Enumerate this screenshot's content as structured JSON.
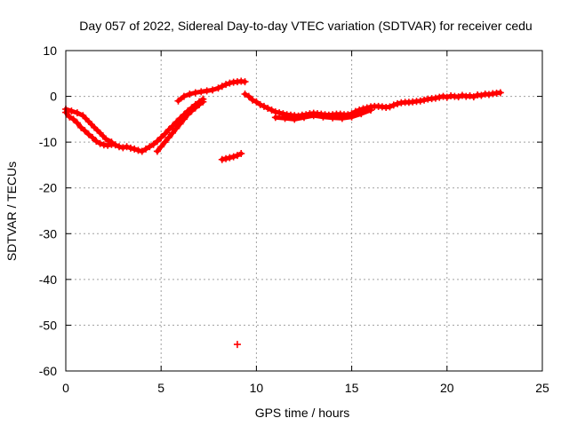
{
  "chart_data": {
    "type": "scatter",
    "title": "Day 057 of 2022, Sidereal Day-to-day VTEC variation (SDTVAR) for receiver cedu",
    "xlabel": "GPS time / hours",
    "ylabel": "SDTVAR / TECUs",
    "xlim": [
      0,
      25
    ],
    "ylim": [
      -60,
      10
    ],
    "xticks": [
      0,
      5,
      10,
      15,
      20,
      25
    ],
    "yticks": [
      10,
      0,
      -10,
      -20,
      -30,
      -40,
      -50,
      -60
    ],
    "grid": true,
    "series": [
      {
        "name": "SDTVAR",
        "color": "#ff0000",
        "segments": [
          {
            "x": [
              0.0,
              0.2,
              0.4,
              0.6,
              0.8,
              1.0,
              1.2,
              1.4,
              1.6,
              1.8,
              2.0,
              2.2,
              2.4,
              2.6,
              2.8,
              3.0,
              3.2,
              3.4,
              3.6,
              3.8,
              4.0,
              4.2,
              4.4,
              4.6,
              4.8,
              5.0,
              5.2,
              5.4,
              5.6,
              5.8,
              6.0,
              6.2,
              6.4,
              6.6,
              6.8,
              7.0,
              7.2
            ],
            "y": [
              -3.5,
              -4.5,
              -5.0,
              -5.8,
              -6.8,
              -7.5,
              -8.3,
              -9.0,
              -9.8,
              -10.3,
              -10.6,
              -10.7,
              -10.5,
              -10.6,
              -11.0,
              -11.2,
              -11.0,
              -11.3,
              -11.5,
              -11.8,
              -12.0,
              -11.5,
              -11.0,
              -10.5,
              -9.8,
              -9.0,
              -8.2,
              -7.3,
              -6.5,
              -5.6,
              -4.8,
              -4.0,
              -3.2,
              -2.5,
              -1.8,
              -1.2,
              -0.6
            ]
          },
          {
            "x": [
              0.0,
              0.3,
              0.6,
              0.9,
              1.2,
              1.5,
              1.8,
              2.1,
              2.4
            ],
            "y": [
              -2.8,
              -3.2,
              -3.6,
              -4.2,
              -5.5,
              -6.8,
              -8.0,
              -9.3,
              -10.0
            ]
          },
          {
            "x": [
              4.8,
              5.0,
              5.2,
              5.4,
              5.6,
              5.8,
              6.0,
              6.2,
              6.4,
              6.6,
              6.8,
              7.0,
              7.2
            ],
            "y": [
              -12.0,
              -11.0,
              -10.0,
              -9.0,
              -8.0,
              -7.0,
              -6.0,
              -5.0,
              -4.0,
              -3.2,
              -2.5,
              -1.8,
              -1.2
            ]
          },
          {
            "x": [
              5.9,
              6.2,
              6.5,
              6.8,
              7.1,
              7.4,
              7.7,
              8.0,
              8.2,
              8.4,
              8.6,
              8.8,
              9.0,
              9.2,
              9.4
            ],
            "y": [
              -1.0,
              0.0,
              0.5,
              0.8,
              1.0,
              1.2,
              1.4,
              1.8,
              2.2,
              2.6,
              2.9,
              3.1,
              3.2,
              3.3,
              3.2
            ]
          },
          {
            "x": [
              8.2,
              8.4,
              8.6,
              8.8,
              9.0,
              9.2
            ],
            "y": [
              -13.8,
              -13.6,
              -13.4,
              -13.2,
              -12.9,
              -12.5
            ]
          },
          {
            "x": [
              9.0
            ],
            "y": [
              -54.2
            ]
          },
          {
            "x": [
              9.4,
              9.6,
              9.8,
              10.0,
              10.2,
              10.4,
              10.6,
              10.8,
              11.0,
              11.2,
              11.4,
              11.6,
              11.8,
              12.0,
              12.2,
              12.4,
              12.6,
              12.8,
              13.0,
              13.2,
              13.4,
              13.6,
              13.8,
              14.0,
              14.2,
              14.4,
              14.6,
              14.8,
              15.0,
              15.2,
              15.4,
              15.6,
              15.8,
              16.0,
              16.2,
              16.4,
              16.6,
              16.8,
              17.0,
              17.2,
              17.4,
              17.6,
              17.8,
              18.0,
              18.2,
              18.4,
              18.6,
              18.8,
              19.0,
              19.2,
              19.4,
              19.6,
              19.8,
              20.0,
              20.2,
              20.4,
              20.6,
              20.8,
              21.0,
              21.2,
              21.4,
              21.6,
              21.8,
              22.0,
              22.2,
              22.4,
              22.6,
              22.8
            ],
            "y": [
              0.5,
              0.0,
              -0.8,
              -1.2,
              -1.8,
              -2.2,
              -2.6,
              -3.0,
              -3.4,
              -3.6,
              -3.8,
              -4.0,
              -4.1,
              -4.2,
              -4.3,
              -4.1,
              -4.0,
              -3.8,
              -3.7,
              -3.8,
              -3.9,
              -4.0,
              -4.1,
              -4.0,
              -3.9,
              -3.9,
              -4.0,
              -4.0,
              -3.8,
              -3.3,
              -3.0,
              -2.7,
              -2.5,
              -2.3,
              -2.2,
              -2.2,
              -2.3,
              -2.4,
              -2.3,
              -1.9,
              -1.6,
              -1.4,
              -1.3,
              -1.3,
              -1.2,
              -1.1,
              -1.0,
              -0.8,
              -0.6,
              -0.5,
              -0.4,
              -0.2,
              0.0,
              -0.2,
              0.1,
              0.0,
              -0.1,
              0.2,
              0.0,
              0.1,
              -0.1,
              0.3,
              0.2,
              0.5,
              0.4,
              0.6,
              0.7,
              0.8
            ]
          },
          {
            "x": [
              11.0,
              11.5,
              12.0,
              12.5,
              13.0,
              13.5,
              14.0,
              14.5,
              15.0,
              15.5,
              16.0
            ],
            "y": [
              -4.6,
              -4.8,
              -5.0,
              -4.6,
              -4.2,
              -4.5,
              -4.7,
              -4.8,
              -4.5,
              -3.8,
              -3.0
            ]
          }
        ]
      }
    ]
  }
}
